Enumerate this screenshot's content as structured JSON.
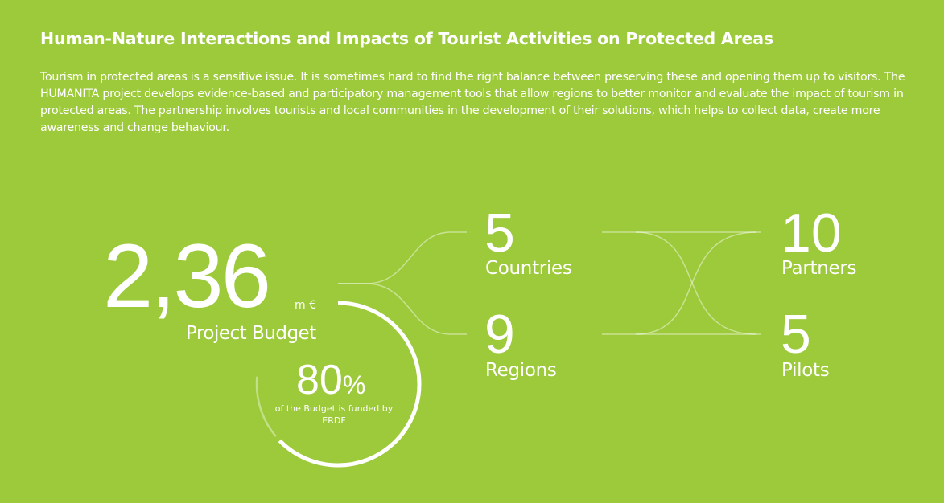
{
  "header": {
    "title": "Human-Nature Interactions and Impacts of Tourist Activities on Protected Areas",
    "description": "Tourism in protected areas is a sensitive issue. It is sometimes hard to find the right balance between preserving these and opening them up to visitors. The HUMANITA project develops evidence-based and participatory management tools that allow regions to better monitor and evaluate the impact of tourism in protected areas. The partnership involves tourists and local communities in the development of their solutions, which helps to collect data, create more awareness and change behaviour."
  },
  "budget": {
    "value": "2,36",
    "unit": "m €",
    "label": "Project Budget"
  },
  "funding": {
    "value": "80",
    "percent_sign": "%",
    "label": "of the Budget is funded by ERDF",
    "fraction": 0.8
  },
  "stats": [
    {
      "value": "5",
      "label": "Countries"
    },
    {
      "value": "9",
      "label": "Regions"
    },
    {
      "value": "10",
      "label": "Partners"
    },
    {
      "value": "5",
      "label": "Pilots"
    }
  ],
  "colors": {
    "background": "#9dca3b",
    "foreground": "#ffffff"
  }
}
